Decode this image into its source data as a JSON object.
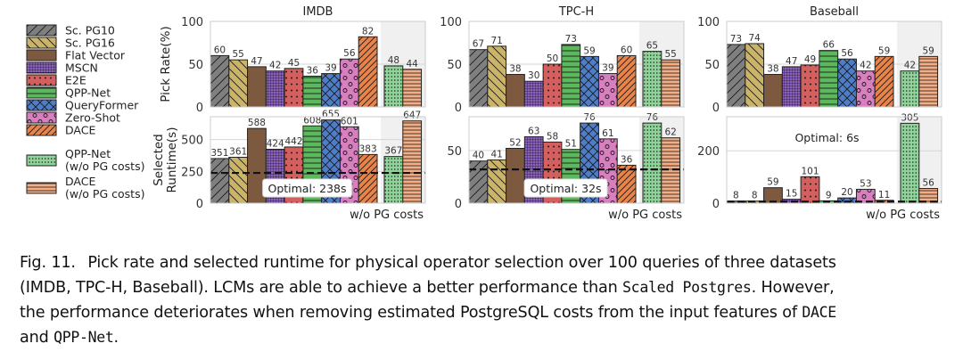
{
  "legend": {
    "items": [
      {
        "key": "sc_pg10",
        "label": "Sc. PG10",
        "color": "#7f7f7f",
        "hatch": "diag-fwd"
      },
      {
        "key": "sc_pg16",
        "label": "Sc. PG16",
        "color": "#cbb468",
        "hatch": "diag-back"
      },
      {
        "key": "flat_vector",
        "label": "Flat Vector",
        "color": "#7d5a3f",
        "hatch": "none"
      },
      {
        "key": "mscn",
        "label": "MSCN",
        "color": "#8a5fbf",
        "hatch": "grid"
      },
      {
        "key": "e2e",
        "label": "E2E",
        "color": "#d45f5f",
        "hatch": "dots"
      },
      {
        "key": "qpp_net",
        "label": "QPP-Net",
        "color": "#5cb85c",
        "hatch": "horiz"
      },
      {
        "key": "queryformer",
        "label": "QueryFormer",
        "color": "#4f7ec9",
        "hatch": "cross"
      },
      {
        "key": "zero_shot",
        "label": "Zero-Shot",
        "color": "#d87fc0",
        "hatch": "circles"
      },
      {
        "key": "dace",
        "label": "DACE",
        "color": "#e8844a",
        "hatch": "diag-fwd-dense"
      },
      {
        "key": "qpp_net_nopg",
        "label": "QPP-Net",
        "label2": "(w/o PG costs)",
        "color": "#8fd39a",
        "hatch": "small-dots"
      },
      {
        "key": "dace_nopg",
        "label": "DACE",
        "label2": "(w/o PG costs)",
        "color": "#f2ad84",
        "hatch": "horiz-dense"
      }
    ]
  },
  "chart_data": [
    {
      "type": "bar",
      "title": "IMDB",
      "row": "pick_rate",
      "ylabel": "Pick Rate(%)",
      "ylim": [
        0,
        100
      ],
      "yticks": [
        0,
        50,
        100
      ],
      "grid": true,
      "series_keys": [
        "sc_pg10",
        "sc_pg16",
        "flat_vector",
        "mscn",
        "e2e",
        "qpp_net",
        "queryformer",
        "zero_shot",
        "dace",
        "qpp_net_nopg",
        "dace_nopg"
      ],
      "values": [
        60,
        55,
        47,
        42,
        45,
        36,
        39,
        56,
        82,
        48,
        44
      ],
      "shaded_group_label": ""
    },
    {
      "type": "bar",
      "title": "TPC-H",
      "row": "pick_rate",
      "ylabel": "",
      "ylim": [
        0,
        100
      ],
      "yticks": [
        0,
        50,
        100
      ],
      "grid": true,
      "series_keys": [
        "sc_pg10",
        "sc_pg16",
        "flat_vector",
        "mscn",
        "e2e",
        "qpp_net",
        "queryformer",
        "zero_shot",
        "dace",
        "qpp_net_nopg",
        "dace_nopg"
      ],
      "values": [
        67,
        71,
        38,
        30,
        50,
        73,
        59,
        39,
        60,
        65,
        55
      ],
      "shaded_group_label": ""
    },
    {
      "type": "bar",
      "title": "Baseball",
      "row": "pick_rate",
      "ylabel": "",
      "ylim": [
        0,
        100
      ],
      "yticks": [
        0,
        50,
        100
      ],
      "grid": true,
      "series_keys": [
        "sc_pg10",
        "sc_pg16",
        "flat_vector",
        "mscn",
        "e2e",
        "qpp_net",
        "queryformer",
        "zero_shot",
        "dace",
        "qpp_net_nopg",
        "dace_nopg"
      ],
      "values": [
        73,
        74,
        38,
        47,
        49,
        66,
        56,
        42,
        59,
        42,
        59
      ],
      "shaded_group_label": ""
    },
    {
      "type": "bar",
      "title": "",
      "row": "runtime",
      "ylabel": "Selected\nRuntime(s)",
      "ylim": [
        0,
        680
      ],
      "yticks": [
        0,
        250,
        500
      ],
      "grid": true,
      "series_keys": [
        "sc_pg10",
        "sc_pg16",
        "flat_vector",
        "mscn",
        "e2e",
        "qpp_net",
        "queryformer",
        "zero_shot",
        "dace",
        "qpp_net_nopg",
        "dace_nopg"
      ],
      "values": [
        351,
        361,
        588,
        424,
        442,
        608,
        655,
        601,
        383,
        367,
        647
      ],
      "optimal": 238,
      "optimal_label": "Optimal: 238s",
      "optimal_label_pos": "bottom-center",
      "shaded_group_label": "w/o PG costs"
    },
    {
      "type": "bar",
      "title": "",
      "row": "runtime",
      "ylabel": "",
      "ylim": [
        0,
        82
      ],
      "yticks": [
        0,
        50
      ],
      "grid": true,
      "series_keys": [
        "sc_pg10",
        "sc_pg16",
        "flat_vector",
        "mscn",
        "e2e",
        "qpp_net",
        "queryformer",
        "zero_shot",
        "dace",
        "qpp_net_nopg",
        "dace_nopg"
      ],
      "values": [
        40,
        41,
        52,
        63,
        58,
        51,
        76,
        61,
        36,
        76,
        62
      ],
      "optimal": 32,
      "optimal_label": "Optimal: 32s",
      "optimal_label_pos": "bottom-center",
      "shaded_group_label": "w/o PG costs"
    },
    {
      "type": "bar",
      "title": "",
      "row": "runtime",
      "ylabel": "",
      "ylim": [
        0,
        330
      ],
      "yticks": [
        0,
        200
      ],
      "grid": true,
      "series_keys": [
        "sc_pg10",
        "sc_pg16",
        "flat_vector",
        "mscn",
        "e2e",
        "qpp_net",
        "queryformer",
        "zero_shot",
        "dace",
        "qpp_net_nopg",
        "dace_nopg"
      ],
      "values": [
        8,
        8,
        59,
        15,
        101,
        9,
        20,
        53,
        11,
        305,
        56
      ],
      "optimal": 6,
      "optimal_label": "Optimal: 6s",
      "optimal_label_pos": "top-center",
      "shaded_group_label": "w/o PG costs"
    }
  ],
  "caption": {
    "fig_label": "Fig. 11.",
    "line1": "Pick rate and selected runtime for physical operator selection over 100 queries of three datasets",
    "line2a": "(IMDB, TPC-H, Baseball). LCMs are able to achieve a better performance than ",
    "line2_mono": "Scaled Postgres",
    "line2b": ". However,",
    "line3a": "the performance deteriorates when removing estimated PostgreSQL costs from the input features of ",
    "line3_mono": "DACE",
    "line4a": "and ",
    "line4_mono": "QPP-Net",
    "line4b": "."
  }
}
